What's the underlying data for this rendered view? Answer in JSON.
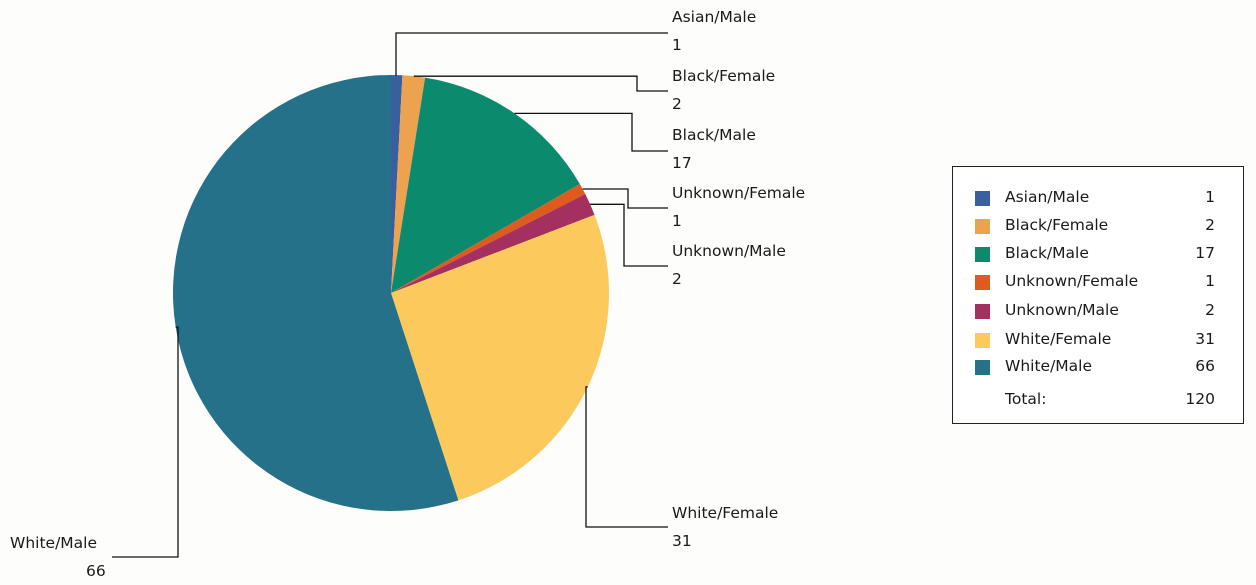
{
  "chart_data": {
    "type": "pie",
    "categories": [
      "Asian/Male",
      "Black/Female",
      "Black/Male",
      "Unknown/Female",
      "Unknown/Male",
      "White/Female",
      "White/Male"
    ],
    "values": [
      1,
      2,
      17,
      1,
      2,
      31,
      66
    ],
    "colors": [
      "#3a5f9f",
      "#eda24f",
      "#0b8a6e",
      "#df5a1d",
      "#a4305f",
      "#fbc95c",
      "#26718a"
    ],
    "start_angle_deg": 0,
    "direction": "clockwise",
    "legend": {
      "placement": "right",
      "entries": [
        {
          "label": "Asian/Male",
          "value": "1"
        },
        {
          "label": "Black/Female",
          "value": "2"
        },
        {
          "label": "Black/Male",
          "value": "17"
        },
        {
          "label": "Unknown/Female",
          "value": "1"
        },
        {
          "label": "Unknown/Male",
          "value": "2"
        },
        {
          "label": "White/Female",
          "value": "31"
        },
        {
          "label": "White/Male",
          "value": "66"
        }
      ],
      "total_label": "Total:",
      "total_value": "120"
    },
    "callouts": [
      {
        "label": "Asian/Male",
        "value": "1"
      },
      {
        "label": "Black/Female",
        "value": "2"
      },
      {
        "label": "Black/Male",
        "value": "17"
      },
      {
        "label": "Unknown/Female",
        "value": "1"
      },
      {
        "label": "Unknown/Male",
        "value": "2"
      },
      {
        "label": "White/Female",
        "value": "31"
      },
      {
        "label": "White/Male",
        "value": "66"
      }
    ]
  }
}
